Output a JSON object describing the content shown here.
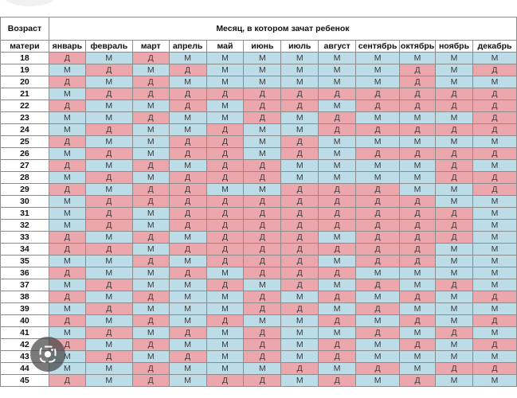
{
  "header": {
    "age_top": "Возраст",
    "age_bottom": "матери",
    "title": "Месяц, в котором зачат ребенок"
  },
  "months": [
    "январь",
    "февраль",
    "март",
    "апрель",
    "май",
    "июнь",
    "июль",
    "август",
    "сентябрь",
    "октябрь",
    "ноябрь",
    "декабрь"
  ],
  "rows": [
    {
      "age": "18",
      "v": [
        "Д",
        "М",
        "Д",
        "М",
        "М",
        "М",
        "М",
        "М",
        "М",
        "М",
        "М",
        "М"
      ]
    },
    {
      "age": "19",
      "v": [
        "М",
        "Д",
        "М",
        "Д",
        "М",
        "М",
        "М",
        "М",
        "М",
        "Д",
        "М",
        "Д"
      ]
    },
    {
      "age": "20",
      "v": [
        "Д",
        "М",
        "Д",
        "М",
        "М",
        "М",
        "М",
        "М",
        "М",
        "Д",
        "М",
        "М"
      ]
    },
    {
      "age": "21",
      "v": [
        "М",
        "Д",
        "Д",
        "Д",
        "Д",
        "Д",
        "Д",
        "Д",
        "Д",
        "Д",
        "Д",
        "Д"
      ]
    },
    {
      "age": "22",
      "v": [
        "Д",
        "М",
        "М",
        "Д",
        "М",
        "Д",
        "Д",
        "М",
        "Д",
        "Д",
        "Д",
        "Д"
      ]
    },
    {
      "age": "23",
      "v": [
        "М",
        "М",
        "Д",
        "М",
        "М",
        "Д",
        "М",
        "Д",
        "М",
        "М",
        "М",
        "Д"
      ]
    },
    {
      "age": "24",
      "v": [
        "М",
        "Д",
        "М",
        "М",
        "Д",
        "М",
        "М",
        "Д",
        "Д",
        "Д",
        "Д",
        "Д"
      ]
    },
    {
      "age": "25",
      "v": [
        "Д",
        "М",
        "М",
        "Д",
        "Д",
        "М",
        "Д",
        "М",
        "М",
        "М",
        "М",
        "М"
      ]
    },
    {
      "age": "26",
      "v": [
        "М",
        "Д",
        "М",
        "Д",
        "Д",
        "М",
        "Д",
        "М",
        "Д",
        "Д",
        "Д",
        "Д"
      ]
    },
    {
      "age": "27",
      "v": [
        "Д",
        "М",
        "Д",
        "М",
        "Д",
        "Д",
        "М",
        "М",
        "М",
        "М",
        "Д",
        "М"
      ]
    },
    {
      "age": "28",
      "v": [
        "М",
        "Д",
        "М",
        "Д",
        "Д",
        "Д",
        "М",
        "М",
        "М",
        "М",
        "Д",
        "Д"
      ]
    },
    {
      "age": "29",
      "v": [
        "Д",
        "М",
        "Д",
        "Д",
        "М",
        "М",
        "Д",
        "Д",
        "Д",
        "М",
        "М",
        "Д"
      ]
    },
    {
      "age": "30",
      "v": [
        "М",
        "Д",
        "Д",
        "Д",
        "Д",
        "Д",
        "Д",
        "Д",
        "Д",
        "Д",
        "М",
        "М"
      ]
    },
    {
      "age": "31",
      "v": [
        "М",
        "Д",
        "М",
        "Д",
        "Д",
        "Д",
        "Д",
        "Д",
        "Д",
        "Д",
        "Д",
        "М"
      ]
    },
    {
      "age": "32",
      "v": [
        "М",
        "Д",
        "М",
        "Д",
        "Д",
        "Д",
        "Д",
        "Д",
        "Д",
        "Д",
        "Д",
        "М"
      ]
    },
    {
      "age": "33",
      "v": [
        "Д",
        "М",
        "Д",
        "М",
        "Д",
        "Д",
        "Д",
        "М",
        "Д",
        "Д",
        "Д",
        "М"
      ]
    },
    {
      "age": "34",
      "v": [
        "Д",
        "Д",
        "М",
        "Д",
        "Д",
        "Д",
        "Д",
        "Д",
        "Д",
        "Д",
        "М",
        "М"
      ]
    },
    {
      "age": "35",
      "v": [
        "М",
        "М",
        "Д",
        "М",
        "Д",
        "Д",
        "Д",
        "М",
        "Д",
        "Д",
        "М",
        "М"
      ]
    },
    {
      "age": "36",
      "v": [
        "Д",
        "М",
        "М",
        "Д",
        "М",
        "Д",
        "Д",
        "Д",
        "М",
        "М",
        "М",
        "М"
      ]
    },
    {
      "age": "37",
      "v": [
        "М",
        "Д",
        "М",
        "М",
        "Д",
        "М",
        "Д",
        "М",
        "Д",
        "М",
        "Д",
        "М"
      ]
    },
    {
      "age": "38",
      "v": [
        "Д",
        "М",
        "Д",
        "М",
        "М",
        "Д",
        "М",
        "Д",
        "М",
        "Д",
        "М",
        "Д"
      ]
    },
    {
      "age": "39",
      "v": [
        "М",
        "Д",
        "М",
        "М",
        "М",
        "Д",
        "Д",
        "М",
        "Д",
        "М",
        "М",
        "М"
      ]
    },
    {
      "age": "40",
      "v": [
        "Д",
        "М",
        "Д",
        "М",
        "Д",
        "М",
        "М",
        "Д",
        "М",
        "Д",
        "М",
        "Д"
      ]
    },
    {
      "age": "41",
      "v": [
        "М",
        "Д",
        "М",
        "Д",
        "М",
        "Д",
        "М",
        "М",
        "Д",
        "М",
        "Д",
        "М"
      ]
    },
    {
      "age": "42",
      "v": [
        "Д",
        "М",
        "Д",
        "М",
        "М",
        "Д",
        "М",
        "Д",
        "М",
        "Д",
        "М",
        "Д"
      ]
    },
    {
      "age": "43",
      "v": [
        "М",
        "Д",
        "М",
        "Д",
        "М",
        "Д",
        "М",
        "Д",
        "М",
        "М",
        "М",
        "М"
      ]
    },
    {
      "age": "44",
      "v": [
        "М",
        "М",
        "Д",
        "М",
        "М",
        "М",
        "Д",
        "М",
        "Д",
        "М",
        "Д",
        "Д"
      ]
    },
    {
      "age": "45",
      "v": [
        "Д",
        "М",
        "Д",
        "М",
        "Д",
        "Д",
        "М",
        "Д",
        "М",
        "Д",
        "М",
        "М"
      ]
    }
  ],
  "colors": {
    "boy": "#bcdde8",
    "girl": "#eca7ad",
    "boy_key": "М",
    "girl_key": "Д"
  },
  "overlay": {
    "lens_icon": "lens-icon"
  }
}
